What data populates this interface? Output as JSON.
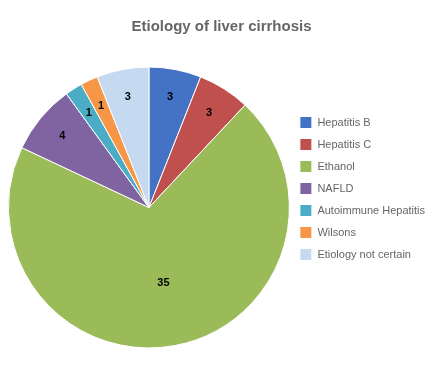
{
  "chart_data": {
    "type": "pie",
    "title": "Etiology of liver cirrhosis",
    "categories": [
      "Hepatitis B",
      "Hepatitis C",
      "Ethanol",
      "NAFLD",
      "Autoimmune Hepatitis",
      "Wilsons",
      "Etiology not certain"
    ],
    "values": [
      3,
      3,
      35,
      4,
      1,
      1,
      3
    ],
    "colors": [
      "#4472C4",
      "#C0504D",
      "#9BBB59",
      "#8064A2",
      "#4BACC6",
      "#F79646",
      "#C5D9F1"
    ],
    "data_labels": true,
    "legend": "right"
  }
}
